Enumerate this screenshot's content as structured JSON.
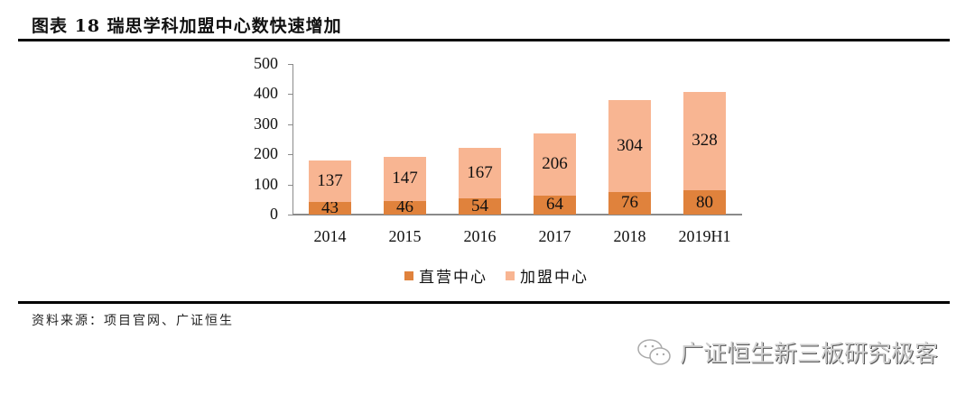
{
  "header": {
    "title": "图表 18 瑞思学科加盟中心数快速增加"
  },
  "footer": {
    "source": "资料来源：项目官网、广证恒生",
    "watermark": "广证恒生新三板研究极客",
    "watermark_icon": "wechat-icon"
  },
  "colors": {
    "direct": "#e0823c",
    "franchise": "#f8b592",
    "axis": "#8a8a8a"
  },
  "chart_data": {
    "type": "bar",
    "stacked": true,
    "title": "瑞思学科加盟中心数快速增加",
    "xlabel": "",
    "ylabel": "",
    "ylim": [
      0,
      500
    ],
    "yticks": [
      "0",
      "100",
      "200",
      "300",
      "400",
      "500"
    ],
    "categories": [
      "2014",
      "2015",
      "2016",
      "2017",
      "2018",
      "2019H1"
    ],
    "series": [
      {
        "name": "直营中心",
        "color": "#e0823c",
        "values": [
          43,
          46,
          54,
          64,
          76,
          80
        ]
      },
      {
        "name": "加盟中心",
        "color": "#f8b592",
        "values": [
          137,
          147,
          167,
          206,
          304,
          328
        ]
      }
    ],
    "data_labels": true,
    "grid": false,
    "legend_position": "bottom"
  }
}
